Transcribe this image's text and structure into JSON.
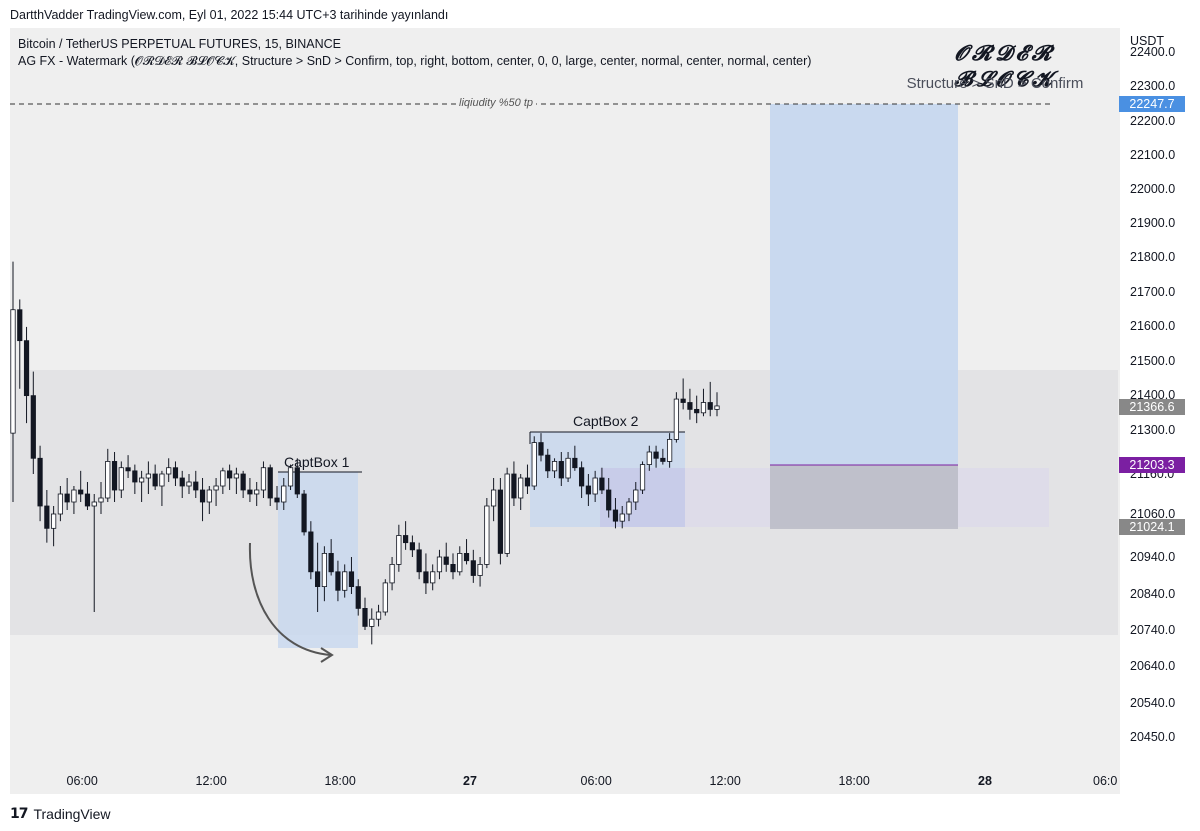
{
  "header": {
    "publish_line": "DartthVadder TradingView.com, Eyl 01, 2022 15:44 UTC+3 tarihinde yayınlandı"
  },
  "legend": {
    "symbol_line": "Bitcoin / TetherUS PERPETUAL FUTURES, 15, BINANCE",
    "indicator_line": "AG FX - Watermark (𝓞𝓡𝓓𝓔𝓡 𝓑𝓛𝓞𝓒𝓚, Structure > SnD > Confirm, top, right, bottom, center, 0, 0, large, center, normal, center, normal, center)"
  },
  "watermark": {
    "title": "𝓞𝓡𝓓𝓔𝓡 𝓑𝓛𝓞𝓒𝓚",
    "subtitle": "Structure > SnD > Confirm"
  },
  "annotations": {
    "liquidity_label": "liqiudity %50 tp",
    "captbox1": "CaptBox 1",
    "captbox2": "CaptBox 2"
  },
  "price_axis": {
    "currency": "USDT",
    "ticks": [
      "22400.0",
      "22300.0",
      "22200.0",
      "22100.0",
      "22000.0",
      "21900.0",
      "21800.0",
      "21700.0",
      "21600.0",
      "21500.0",
      "21400.0",
      "21300.0",
      "21160.0",
      "21060.0",
      "20940.0",
      "20840.0",
      "20740.0",
      "20640.0",
      "20540.0",
      "20450.0"
    ],
    "tags": [
      {
        "label": "22247.7",
        "color": "#4a90e2"
      },
      {
        "label": "21366.6",
        "color": "#888888"
      },
      {
        "label": "21203.3",
        "color": "#7b1fa2"
      },
      {
        "label": "21024.1",
        "color": "#888888"
      }
    ]
  },
  "time_axis": {
    "labels": [
      "06:00",
      "12:00",
      "18:00",
      "27",
      "06:00",
      "12:00",
      "18:00",
      "28",
      "06:0"
    ]
  },
  "footer": {
    "brand": "TradingView",
    "logo_mark": "17"
  },
  "colors": {
    "chart_bg": "#efefef",
    "zone_gray": "#e4e4e6",
    "box_blue": "#c5d6ee",
    "box_purple": "#d9d6e8",
    "candle_up": "#ffffff",
    "candle_down": "#131722",
    "purple_line": "#7b1fa2"
  },
  "chart_data": {
    "type": "candlestick",
    "symbol": "Bitcoin / TetherUS PERPETUAL FUTURES",
    "interval": "15",
    "exchange": "BINANCE",
    "y_unit": "USDT",
    "ylim": [
      20400,
      22420
    ],
    "levels": [
      {
        "label": "liqiudity %50 tp",
        "value": 22247.7,
        "style": "dashed"
      },
      {
        "value": 21366.6
      },
      {
        "value": 21203.3
      },
      {
        "value": 21024.1
      }
    ],
    "candles": [
      [
        21290,
        21790,
        21090,
        21650
      ],
      [
        21650,
        21680,
        21420,
        21560
      ],
      [
        21560,
        21600,
        21320,
        21400
      ],
      [
        21400,
        21470,
        21160,
        21210
      ],
      [
        21210,
        21250,
        21040,
        21080
      ],
      [
        21080,
        21120,
        20980,
        21020
      ],
      [
        21020,
        21080,
        20970,
        21060
      ],
      [
        21060,
        21130,
        21040,
        21110
      ],
      [
        21110,
        21150,
        21070,
        21090
      ],
      [
        21090,
        21130,
        21060,
        21120
      ],
      [
        21120,
        21170,
        21090,
        21110
      ],
      [
        21110,
        21140,
        21070,
        21080
      ],
      [
        21080,
        21110,
        20790,
        21090
      ],
      [
        21090,
        21140,
        21060,
        21100
      ],
      [
        21100,
        21240,
        21090,
        21200
      ],
      [
        21200,
        21230,
        21090,
        21120
      ],
      [
        21120,
        21200,
        21100,
        21180
      ],
      [
        21180,
        21220,
        21150,
        21170
      ],
      [
        21170,
        21190,
        21110,
        21140
      ],
      [
        21140,
        21170,
        21090,
        21150
      ],
      [
        21150,
        21200,
        21110,
        21160
      ],
      [
        21160,
        21190,
        21120,
        21130
      ],
      [
        21130,
        21170,
        21080,
        21160
      ],
      [
        21160,
        21210,
        21140,
        21180
      ],
      [
        21180,
        21200,
        21130,
        21150
      ],
      [
        21150,
        21170,
        21100,
        21130
      ],
      [
        21130,
        21160,
        21110,
        21140
      ],
      [
        21140,
        21170,
        21100,
        21120
      ],
      [
        21120,
        21150,
        21040,
        21090
      ],
      [
        21090,
        21130,
        21060,
        21120
      ],
      [
        21120,
        21150,
        21080,
        21130
      ],
      [
        21130,
        21180,
        21110,
        21170
      ],
      [
        21170,
        21190,
        21120,
        21150
      ],
      [
        21150,
        21180,
        21110,
        21160
      ],
      [
        21160,
        21170,
        21100,
        21120
      ],
      [
        21120,
        21150,
        21090,
        21110
      ],
      [
        21110,
        21140,
        21080,
        21120
      ],
      [
        21120,
        21200,
        21100,
        21180
      ],
      [
        21180,
        21190,
        21080,
        21100
      ],
      [
        21100,
        21130,
        21070,
        21090
      ],
      [
        21090,
        21150,
        21070,
        21130
      ],
      [
        21130,
        21190,
        21120,
        21180
      ],
      [
        21180,
        21210,
        21100,
        21110
      ],
      [
        21110,
        21120,
        21000,
        21010
      ],
      [
        21010,
        21040,
        20880,
        20900
      ],
      [
        20900,
        20980,
        20790,
        20860
      ],
      [
        20860,
        20970,
        20820,
        20950
      ],
      [
        20950,
        20990,
        20890,
        20900
      ],
      [
        20900,
        20930,
        20820,
        20850
      ],
      [
        20850,
        20920,
        20830,
        20900
      ],
      [
        20900,
        20940,
        20840,
        20860
      ],
      [
        20860,
        20880,
        20780,
        20800
      ],
      [
        20800,
        20830,
        20740,
        20750
      ],
      [
        20750,
        20800,
        20700,
        20770
      ],
      [
        20770,
        20810,
        20750,
        20790
      ],
      [
        20790,
        20880,
        20780,
        20870
      ],
      [
        20870,
        20940,
        20850,
        20920
      ],
      [
        20920,
        21030,
        20900,
        21000
      ],
      [
        21000,
        21040,
        20960,
        20980
      ],
      [
        20980,
        21000,
        20940,
        20960
      ],
      [
        20960,
        20980,
        20880,
        20900
      ],
      [
        20900,
        20950,
        20840,
        20870
      ],
      [
        20870,
        20920,
        20850,
        20900
      ],
      [
        20900,
        20960,
        20880,
        20940
      ],
      [
        20940,
        20980,
        20900,
        20920
      ],
      [
        20920,
        20950,
        20880,
        20900
      ],
      [
        20900,
        20970,
        20890,
        20950
      ],
      [
        20950,
        20990,
        20920,
        20930
      ],
      [
        20930,
        20960,
        20870,
        20890
      ],
      [
        20890,
        20940,
        20860,
        20920
      ],
      [
        20920,
        21100,
        20910,
        21080
      ],
      [
        21080,
        21150,
        21040,
        21120
      ],
      [
        21120,
        21150,
        20920,
        20950
      ],
      [
        20950,
        21180,
        20940,
        21160
      ],
      [
        21160,
        21200,
        21080,
        21100
      ],
      [
        21100,
        21160,
        21070,
        21150
      ],
      [
        21150,
        21190,
        21110,
        21130
      ],
      [
        21130,
        21280,
        21120,
        21260
      ],
      [
        21260,
        21290,
        21200,
        21220
      ],
      [
        21220,
        21240,
        21150,
        21170
      ],
      [
        21170,
        21210,
        21150,
        21200
      ],
      [
        21200,
        21230,
        21130,
        21150
      ],
      [
        21150,
        21230,
        21140,
        21210
      ],
      [
        21210,
        21250,
        21170,
        21180
      ],
      [
        21180,
        21200,
        21100,
        21130
      ],
      [
        21130,
        21160,
        21080,
        21110
      ],
      [
        21110,
        21170,
        21090,
        21150
      ],
      [
        21150,
        21180,
        21110,
        21120
      ],
      [
        21120,
        21150,
        21050,
        21070
      ],
      [
        21070,
        21100,
        21020,
        21040
      ],
      [
        21040,
        21080,
        21020,
        21060
      ],
      [
        21060,
        21100,
        21040,
        21090
      ],
      [
        21090,
        21140,
        21070,
        21120
      ],
      [
        21120,
        21200,
        21110,
        21190
      ],
      [
        21190,
        21250,
        21170,
        21230
      ],
      [
        21230,
        21250,
        21180,
        21210
      ],
      [
        21210,
        21240,
        21190,
        21200
      ],
      [
        21200,
        21290,
        21180,
        21270
      ],
      [
        21270,
        21410,
        21260,
        21390
      ],
      [
        21390,
        21450,
        21360,
        21380
      ],
      [
        21380,
        21420,
        21330,
        21360
      ],
      [
        21360,
        21400,
        21320,
        21350
      ],
      [
        21350,
        21420,
        21340,
        21380
      ],
      [
        21380,
        21440,
        21340,
        21360
      ],
      [
        21360,
        21410,
        21340,
        21370
      ]
    ]
  }
}
